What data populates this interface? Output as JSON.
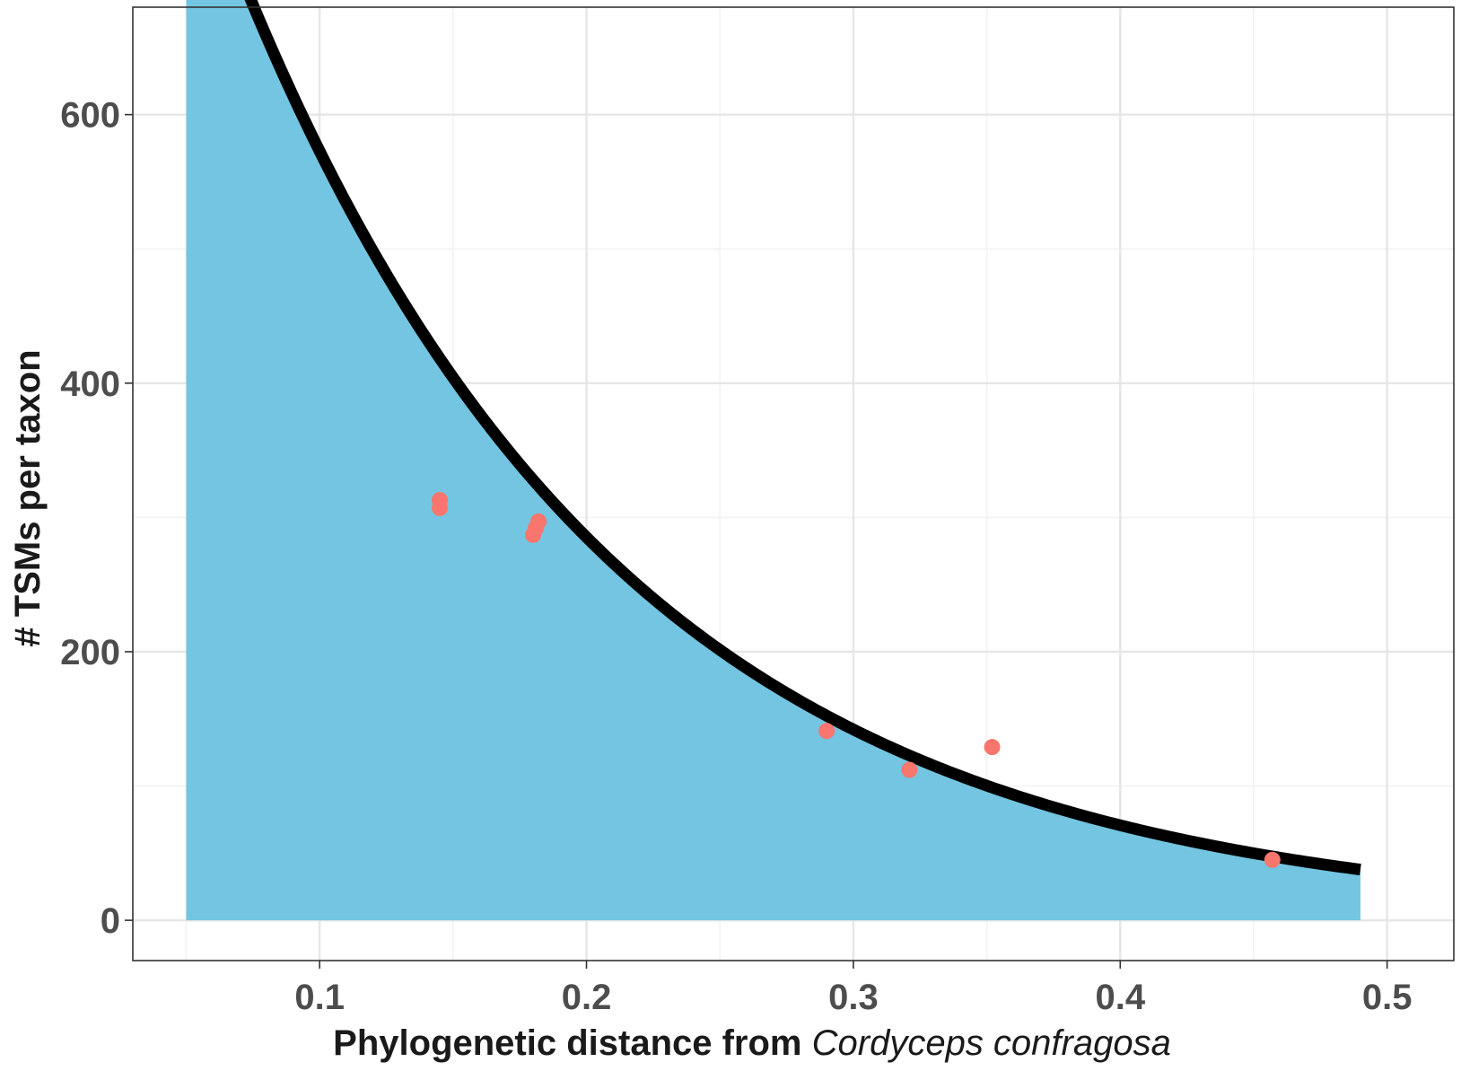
{
  "chart_data": {
    "type": "scatter",
    "xlabel_prefix": "Phylogenetic distance from ",
    "xlabel_species": "Cordyceps confragosa",
    "ylabel": "# TSMs per taxon",
    "xlim": [
      0.03,
      0.525
    ],
    "ylim": [
      -30,
      680
    ],
    "x_ticks": [
      0.1,
      0.2,
      0.3,
      0.4,
      0.5
    ],
    "x_tick_labels": [
      "0.1",
      "0.2",
      "0.3",
      "0.4",
      "0.5"
    ],
    "y_ticks": [
      0,
      200,
      400,
      600
    ],
    "y_tick_labels": [
      "0",
      "200",
      "400",
      "600"
    ],
    "x_minor_grid": [
      0.05,
      0.15,
      0.25,
      0.35,
      0.45
    ],
    "y_minor_grid": [
      100,
      300,
      500
    ],
    "grid": true,
    "legend": "none",
    "points": {
      "color": "#f8766d",
      "x": [
        0.145,
        0.145,
        0.18,
        0.181,
        0.182,
        0.29,
        0.321,
        0.352,
        0.457
      ],
      "y": [
        313,
        307,
        287,
        292,
        297,
        141,
        112,
        129,
        45
      ]
    },
    "fit_curve": {
      "color": "#000000",
      "fill_color": "#73c5e1",
      "x_range": [
        0.05,
        0.49
      ],
      "model": "exponential decay",
      "a": 1150,
      "b": 6.97
    }
  }
}
